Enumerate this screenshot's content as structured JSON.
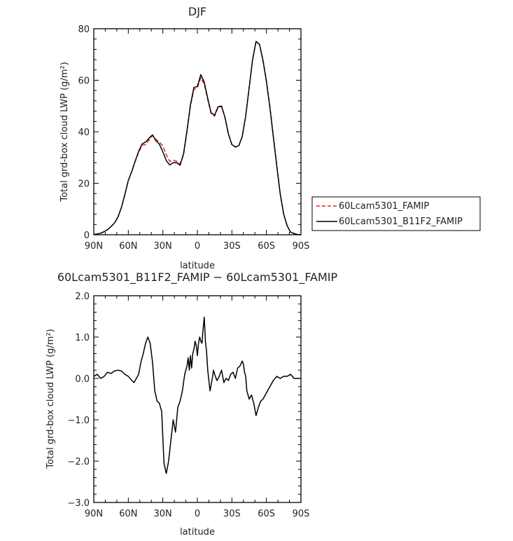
{
  "chart_data": [
    {
      "type": "line",
      "title": "DJF",
      "xlabel": "latitude",
      "ylabel": "Total grd-box cloud LWP (g/m²)",
      "xlim": [
        90,
        -90
      ],
      "ylim": [
        0,
        80
      ],
      "x_ticks": [
        90,
        60,
        30,
        0,
        -30,
        -60,
        -90
      ],
      "x_tick_labels": [
        "90N",
        "60N",
        "30N",
        "0",
        "30S",
        "60S",
        "90S"
      ],
      "y_ticks": [
        0,
        20,
        40,
        60,
        80
      ],
      "y_tick_labels": [
        "0",
        "20",
        "40",
        "60",
        "80"
      ],
      "legend_position": "right",
      "series": [
        {
          "name": "60Lcam5301_FAMIP",
          "color": "#e02020",
          "style": "dashed",
          "x": [
            90,
            87,
            84,
            81,
            78,
            75,
            72,
            69,
            66,
            63,
            60,
            57,
            54,
            51,
            48,
            45,
            42,
            39,
            36,
            33,
            30,
            27,
            24,
            21,
            18,
            15,
            12,
            9,
            6,
            3,
            0,
            -3,
            -6,
            -9,
            -12,
            -15,
            -18,
            -21,
            -24,
            -27,
            -30,
            -33,
            -36,
            -39,
            -42,
            -45,
            -48,
            -51,
            -54,
            -57,
            -60,
            -63,
            -66,
            -69,
            -72,
            -75,
            -78,
            -81,
            -84,
            -87,
            -90
          ],
          "values": [
            0.1,
            0.3,
            0.6,
            1.2,
            2.0,
            3.2,
            4.5,
            6.8,
            10.5,
            15.5,
            21.0,
            24.5,
            28.5,
            32.0,
            34.8,
            35.0,
            36.8,
            38.5,
            37.0,
            36.0,
            34.5,
            31.0,
            28.5,
            29.0,
            28.5,
            27.5,
            31.0,
            40.0,
            50.0,
            56.5,
            57.0,
            61.0,
            58.5,
            52.5,
            47.0,
            46.0,
            49.5,
            49.8,
            45.5,
            39.0,
            35.0,
            34.0,
            34.5,
            38.0,
            46.0,
            57.0,
            68.0,
            75.0,
            74.0,
            68.0,
            60.0,
            50.0,
            38.5,
            27.0,
            16.0,
            8.0,
            3.5,
            1.0,
            0.5,
            0.1,
            0.0
          ]
        },
        {
          "name": "60Lcam5301_B11F2_FAMIP",
          "color": "#000000",
          "style": "solid",
          "x": [
            90,
            87,
            84,
            81,
            78,
            75,
            72,
            69,
            66,
            63,
            60,
            57,
            54,
            51,
            48,
            45,
            42,
            39,
            36,
            33,
            30,
            27,
            24,
            21,
            18,
            15,
            12,
            9,
            6,
            3,
            0,
            -3,
            -6,
            -9,
            -12,
            -15,
            -18,
            -21,
            -24,
            -27,
            -30,
            -33,
            -36,
            -39,
            -42,
            -45,
            -48,
            -51,
            -54,
            -57,
            -60,
            -63,
            -66,
            -69,
            -72,
            -75,
            -78,
            -81,
            -84,
            -87,
            -90
          ],
          "values": [
            0.1,
            0.3,
            0.6,
            1.2,
            2.0,
            3.2,
            4.6,
            6.9,
            10.6,
            15.6,
            21.1,
            24.6,
            28.6,
            32.4,
            35.3,
            36.0,
            37.5,
            38.8,
            36.5,
            35.2,
            32.2,
            28.8,
            27.1,
            28.0,
            28.0,
            27.0,
            31.5,
            40.5,
            50.5,
            57.2,
            57.6,
            62.2,
            59.2,
            53.0,
            47.3,
            46.5,
            49.7,
            50.0,
            45.6,
            39.1,
            35.0,
            34.1,
            34.6,
            38.2,
            46.1,
            57.1,
            68.0,
            75.1,
            73.9,
            67.7,
            59.5,
            49.5,
            38.0,
            26.7,
            15.8,
            8.0,
            3.5,
            1.0,
            0.5,
            0.1,
            0.0
          ]
        }
      ]
    },
    {
      "type": "line",
      "title": "60Lcam5301_B11F2_FAMIP − 60Lcam5301_FAMIP",
      "xlabel": "latitude",
      "ylabel": "Total grd-box cloud LWP (g/m²)",
      "xlim": [
        90,
        -90
      ],
      "ylim": [
        -3.0,
        2.0
      ],
      "x_ticks": [
        90,
        60,
        30,
        0,
        -30,
        -60,
        -90
      ],
      "x_tick_labels": [
        "90N",
        "60N",
        "30N",
        "0",
        "30S",
        "60S",
        "90S"
      ],
      "y_ticks": [
        -3,
        -2,
        -1,
        0,
        1,
        2
      ],
      "y_tick_labels": [
        "−3.0",
        "−2.0",
        "−1.0",
        "0.0",
        "1.0",
        "2.0"
      ],
      "series": [
        {
          "color": "#000000",
          "style": "solid",
          "x": [
            90,
            87,
            84,
            81,
            78,
            75,
            72,
            69,
            66,
            63,
            60,
            57,
            55,
            53,
            51,
            49,
            47,
            45,
            43,
            41,
            39,
            37,
            35,
            33,
            31,
            29,
            27,
            25,
            23,
            21,
            19,
            17,
            15,
            13,
            11,
            9,
            8,
            7,
            6,
            5,
            4,
            3,
            2,
            1,
            0,
            -1,
            -2,
            -3,
            -4,
            -5,
            -6,
            -7,
            -8,
            -9,
            -10,
            -11,
            -12,
            -13,
            -14,
            -15,
            -17,
            -19,
            -21,
            -23,
            -25,
            -27,
            -29,
            -31,
            -33,
            -35,
            -37,
            -39,
            -40,
            -41,
            -42,
            -43,
            -45,
            -47,
            -49,
            -51,
            -53,
            -55,
            -57,
            -59,
            -61,
            -63,
            -66,
            -69,
            -72,
            -75,
            -78,
            -81,
            -84,
            -87,
            -90
          ],
          "values": [
            0.05,
            0.1,
            0.0,
            0.05,
            0.15,
            0.12,
            0.18,
            0.2,
            0.18,
            0.1,
            0.05,
            -0.05,
            -0.1,
            0.0,
            0.1,
            0.4,
            0.6,
            0.85,
            1.0,
            0.85,
            0.4,
            -0.3,
            -0.55,
            -0.6,
            -0.8,
            -2.05,
            -2.3,
            -2.0,
            -1.5,
            -1.0,
            -1.3,
            -0.7,
            -0.55,
            -0.3,
            0.1,
            0.3,
            0.5,
            0.2,
            0.55,
            0.25,
            0.6,
            0.7,
            0.9,
            0.8,
            0.55,
            0.85,
            1.0,
            0.9,
            0.85,
            1.2,
            1.48,
            0.9,
            0.65,
            0.2,
            -0.05,
            -0.3,
            -0.15,
            0.0,
            0.2,
            0.1,
            -0.05,
            0.05,
            0.2,
            -0.1,
            0.0,
            -0.05,
            0.1,
            0.15,
            0.0,
            0.25,
            0.3,
            0.42,
            0.35,
            0.15,
            0.05,
            -0.3,
            -0.5,
            -0.4,
            -0.6,
            -0.9,
            -0.7,
            -0.55,
            -0.5,
            -0.4,
            -0.3,
            -0.2,
            -0.05,
            0.05,
            0.0,
            0.05,
            0.05,
            0.1,
            0.0,
            0.0,
            0.0
          ]
        }
      ]
    }
  ]
}
